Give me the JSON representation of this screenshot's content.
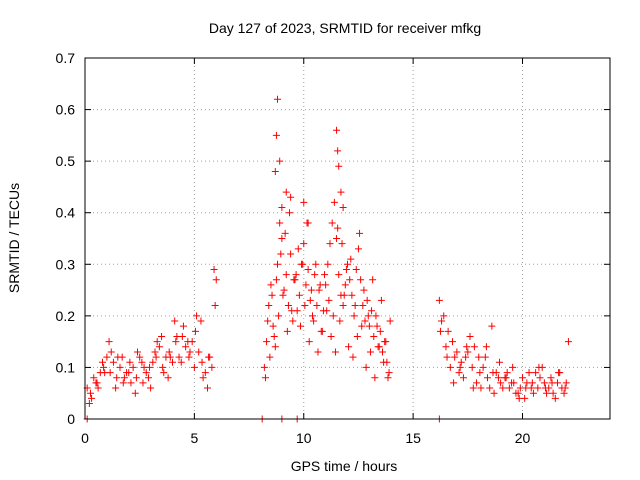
{
  "chart_data": {
    "type": "scatter",
    "title": "Day 127 of 2023, SRMTID for receiver mfkg",
    "xlabel": "GPS time / hours",
    "ylabel": "SRMTID / TECUs",
    "xlim": [
      0,
      24
    ],
    "ylim": [
      0,
      0.7
    ],
    "xticks": [
      0,
      5,
      10,
      15,
      20
    ],
    "xtick_labels": [
      "0",
      "5",
      "10",
      "15",
      "20"
    ],
    "yticks": [
      0,
      0.1,
      0.2,
      0.3,
      0.4,
      0.5,
      0.6,
      0.7
    ],
    "ytick_labels": [
      "0",
      "0.1",
      "0.2",
      "0.3",
      "0.4",
      "0.5",
      "0.6",
      "0.7"
    ],
    "grid": true,
    "marker": "plus",
    "color": "#ff0000",
    "series": [
      {
        "name": "SRMTID",
        "x": [
          0.1,
          0.25,
          0.4,
          0.55,
          0.7,
          0.85,
          1.0,
          1.15,
          1.3,
          1.45,
          1.6,
          1.75,
          1.9,
          2.05,
          2.2,
          2.35,
          2.5,
          2.65,
          2.8,
          2.95,
          3.1,
          3.25,
          3.4,
          3.55,
          3.7,
          3.85,
          4.0,
          4.15,
          4.3,
          4.45,
          4.6,
          4.75,
          4.9,
          5.05,
          5.2,
          5.35,
          5.5,
          5.65,
          5.8,
          5.95,
          0.3,
          0.6,
          0.9,
          1.2,
          1.5,
          1.8,
          2.1,
          2.4,
          2.7,
          3.0,
          3.3,
          3.6,
          3.9,
          4.2,
          4.5,
          4.8,
          5.1,
          5.4,
          5.7,
          6.0,
          0.2,
          0.5,
          0.8,
          1.1,
          1.4,
          1.7,
          2.0,
          2.3,
          2.6,
          2.9,
          3.2,
          3.5,
          3.8,
          4.1,
          4.4,
          4.7,
          5.0,
          5.3,
          5.6,
          5.9,
          8.2,
          8.3,
          8.4,
          8.5,
          8.6,
          8.7,
          8.8,
          8.9,
          9.0,
          9.1,
          9.2,
          9.3,
          9.4,
          9.5,
          9.6,
          9.7,
          9.8,
          9.9,
          10.0,
          10.1,
          10.2,
          10.3,
          10.4,
          10.5,
          10.6,
          10.7,
          10.8,
          10.9,
          11.0,
          11.1,
          11.2,
          11.3,
          11.4,
          11.5,
          11.6,
          11.7,
          11.8,
          11.9,
          12.0,
          12.1,
          12.2,
          12.3,
          12.4,
          12.5,
          12.6,
          12.7,
          12.8,
          12.9,
          13.0,
          13.1,
          13.2,
          13.3,
          13.4,
          13.5,
          13.6,
          13.7,
          13.8,
          13.9,
          8.25,
          8.45,
          8.65,
          8.85,
          9.05,
          9.25,
          9.45,
          9.65,
          9.85,
          10.05,
          10.25,
          10.45,
          10.65,
          10.85,
          11.05,
          11.25,
          11.45,
          11.65,
          11.85,
          12.05,
          12.25,
          12.45,
          12.65,
          12.85,
          13.05,
          13.25,
          13.45,
          13.65,
          13.85,
          8.35,
          8.55,
          8.75,
          8.95,
          9.15,
          9.35,
          9.55,
          9.75,
          9.95,
          10.15,
          10.35,
          10.55,
          10.75,
          10.95,
          11.15,
          11.35,
          11.55,
          11.75,
          11.95,
          12.15,
          12.35,
          12.55,
          12.75,
          12.95,
          13.15,
          13.35,
          13.55,
          13.75,
          13.95,
          8.7,
          8.75,
          8.8,
          8.9,
          9.0,
          9.2,
          9.4,
          10.0,
          10.2,
          11.5,
          11.55,
          11.6,
          11.7,
          11.8,
          16.2,
          16.4,
          16.6,
          16.8,
          17.0,
          17.2,
          17.4,
          17.6,
          17.8,
          18.0,
          18.2,
          18.4,
          18.6,
          18.8,
          19.0,
          19.2,
          19.4,
          19.6,
          19.8,
          20.0,
          20.2,
          20.4,
          20.6,
          20.8,
          21.0,
          21.2,
          21.4,
          21.6,
          21.8,
          22.0,
          16.3,
          16.5,
          16.7,
          16.9,
          17.1,
          17.3,
          17.5,
          17.7,
          17.9,
          18.1,
          18.3,
          18.5,
          18.7,
          18.9,
          19.1,
          19.3,
          19.5,
          19.7,
          19.9,
          20.1,
          20.3,
          20.5,
          20.7,
          20.9,
          21.1,
          21.3,
          21.5,
          21.7,
          21.9,
          22.1,
          16.25,
          16.55,
          16.85,
          17.15,
          17.45,
          17.75,
          18.05,
          18.35,
          18.65,
          18.95,
          19.25,
          19.55,
          19.85,
          20.15,
          20.45,
          20.75,
          21.05,
          21.35,
          21.65,
          21.95,
          0.1,
          8.1,
          9.0,
          9.7,
          16.2
        ],
        "y": [
          0.06,
          0.05,
          0.08,
          0.07,
          0.09,
          0.1,
          0.12,
          0.09,
          0.11,
          0.08,
          0.1,
          0.07,
          0.09,
          0.11,
          0.1,
          0.08,
          0.12,
          0.07,
          0.09,
          0.1,
          0.11,
          0.12,
          0.14,
          0.1,
          0.12,
          0.13,
          0.11,
          0.15,
          0.12,
          0.16,
          0.14,
          0.12,
          0.15,
          0.17,
          0.13,
          0.11,
          0.09,
          0.12,
          0.1,
          0.22,
          0.04,
          0.06,
          0.09,
          0.13,
          0.12,
          0.08,
          0.07,
          0.13,
          0.1,
          0.06,
          0.15,
          0.09,
          0.12,
          0.16,
          0.18,
          0.13,
          0.2,
          0.08,
          0.12,
          0.27,
          0.03,
          0.07,
          0.11,
          0.15,
          0.06,
          0.12,
          0.09,
          0.05,
          0.11,
          0.08,
          0.13,
          0.16,
          0.08,
          0.19,
          0.11,
          0.15,
          0.1,
          0.19,
          0.06,
          0.29,
          0.1,
          0.15,
          0.22,
          0.26,
          0.18,
          0.14,
          0.3,
          0.38,
          0.35,
          0.25,
          0.28,
          0.22,
          0.32,
          0.19,
          0.27,
          0.21,
          0.24,
          0.3,
          0.34,
          0.26,
          0.29,
          0.23,
          0.2,
          0.28,
          0.22,
          0.25,
          0.17,
          0.21,
          0.26,
          0.3,
          0.34,
          0.38,
          0.42,
          0.35,
          0.28,
          0.24,
          0.22,
          0.26,
          0.3,
          0.27,
          0.24,
          0.2,
          0.29,
          0.33,
          0.27,
          0.22,
          0.19,
          0.23,
          0.18,
          0.21,
          0.16,
          0.2,
          0.14,
          0.17,
          0.13,
          0.15,
          0.11,
          0.09,
          0.08,
          0.12,
          0.16,
          0.2,
          0.24,
          0.17,
          0.21,
          0.28,
          0.18,
          0.22,
          0.15,
          0.19,
          0.13,
          0.17,
          0.21,
          0.16,
          0.13,
          0.19,
          0.24,
          0.14,
          0.12,
          0.16,
          0.18,
          0.1,
          0.13,
          0.08,
          0.14,
          0.11,
          0.08,
          0.19,
          0.24,
          0.27,
          0.32,
          0.36,
          0.4,
          0.27,
          0.33,
          0.3,
          0.38,
          0.25,
          0.3,
          0.26,
          0.28,
          0.23,
          0.2,
          0.37,
          0.34,
          0.29,
          0.31,
          0.22,
          0.36,
          0.25,
          0.2,
          0.27,
          0.18,
          0.23,
          0.15,
          0.19,
          0.48,
          0.55,
          0.62,
          0.5,
          0.41,
          0.44,
          0.43,
          0.42,
          0.38,
          0.56,
          0.52,
          0.49,
          0.44,
          0.41,
          0.23,
          0.2,
          0.17,
          0.15,
          0.13,
          0.11,
          0.12,
          0.16,
          0.14,
          0.12,
          0.1,
          0.08,
          0.18,
          0.09,
          0.07,
          0.08,
          0.06,
          0.07,
          0.05,
          0.08,
          0.07,
          0.06,
          0.09,
          0.08,
          0.07,
          0.06,
          0.05,
          0.07,
          0.06,
          0.07,
          0.19,
          0.14,
          0.1,
          0.12,
          0.09,
          0.08,
          0.13,
          0.1,
          0.07,
          0.06,
          0.12,
          0.06,
          0.05,
          0.08,
          0.06,
          0.09,
          0.07,
          0.05,
          0.06,
          0.04,
          0.09,
          0.05,
          0.06,
          0.1,
          0.05,
          0.08,
          0.04,
          0.09,
          0.05,
          0.15,
          0.17,
          0.12,
          0.07,
          0.1,
          0.14,
          0.06,
          0.09,
          0.14,
          0.09,
          0.11,
          0.08,
          0.1,
          0.04,
          0.06,
          0.07,
          0.1,
          0.06,
          0.07,
          0.09,
          0.06,
          0,
          0,
          0,
          0,
          0
        ]
      }
    ]
  }
}
